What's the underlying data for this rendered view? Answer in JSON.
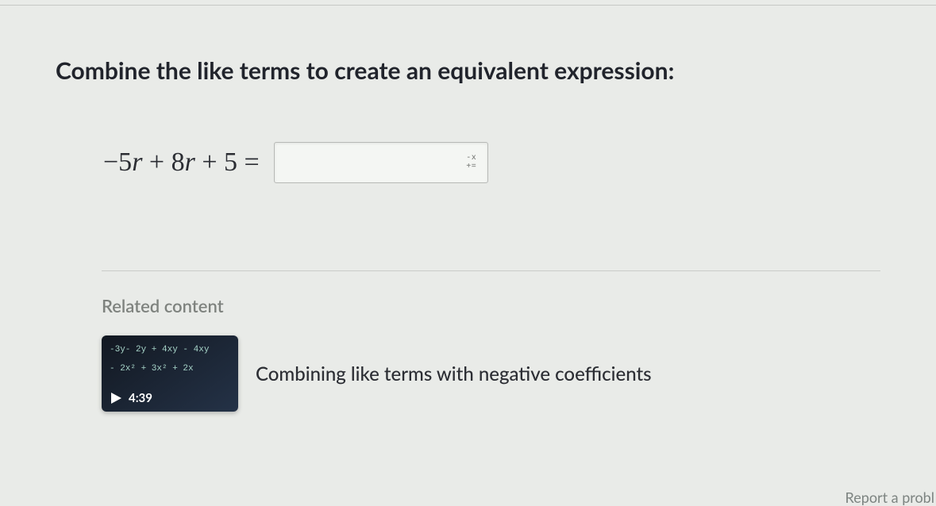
{
  "question": {
    "prompt": "Combine the like terms to create an equivalent expression:",
    "expression_html": "<span>&minus;5<span class=\"v\">r</span> + 8<span class=\"v\">r</span> + 5 =</span>",
    "answer_value": "",
    "math_keypad_line1": "-x",
    "math_keypad_line2": "+="
  },
  "related": {
    "section_label": "Related content",
    "video": {
      "title": "Combining like terms with negative coefficients",
      "duration": "4:39",
      "thumb_line1": "-3y- 2y + 4xy - 4xy",
      "thumb_line2": "- 2x² + 3x² + 2x"
    }
  },
  "footer": {
    "report_label": "Report a probl"
  },
  "style": {
    "background": "#e9ebe8",
    "text_color": "#21242c",
    "muted_color": "#7e827e",
    "thumb_bg_from": "#121821",
    "thumb_bg_to": "#243247"
  }
}
